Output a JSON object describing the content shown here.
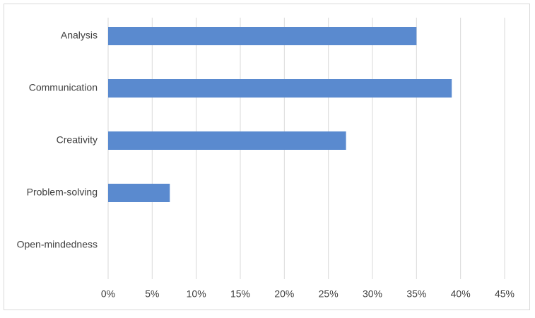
{
  "chart_data": {
    "type": "bar",
    "orientation": "horizontal",
    "categories": [
      "Analysis",
      "Communication",
      "Creativity",
      "Problem-solving",
      "Open-mindedness"
    ],
    "values": [
      35,
      39,
      27,
      7,
      0
    ],
    "color": "#5a8acf",
    "xlim": [
      0,
      45
    ],
    "xticks": [
      {
        "value": 0,
        "label": "0%"
      },
      {
        "value": 5,
        "label": "5%"
      },
      {
        "value": 10,
        "label": "10%"
      },
      {
        "value": 15,
        "label": "15%"
      },
      {
        "value": 20,
        "label": "20%"
      },
      {
        "value": 25,
        "label": "25%"
      },
      {
        "value": 30,
        "label": "30%"
      },
      {
        "value": 35,
        "label": "35%"
      },
      {
        "value": 40,
        "label": "40%"
      },
      {
        "value": 45,
        "label": "45%"
      }
    ],
    "grid": true
  }
}
